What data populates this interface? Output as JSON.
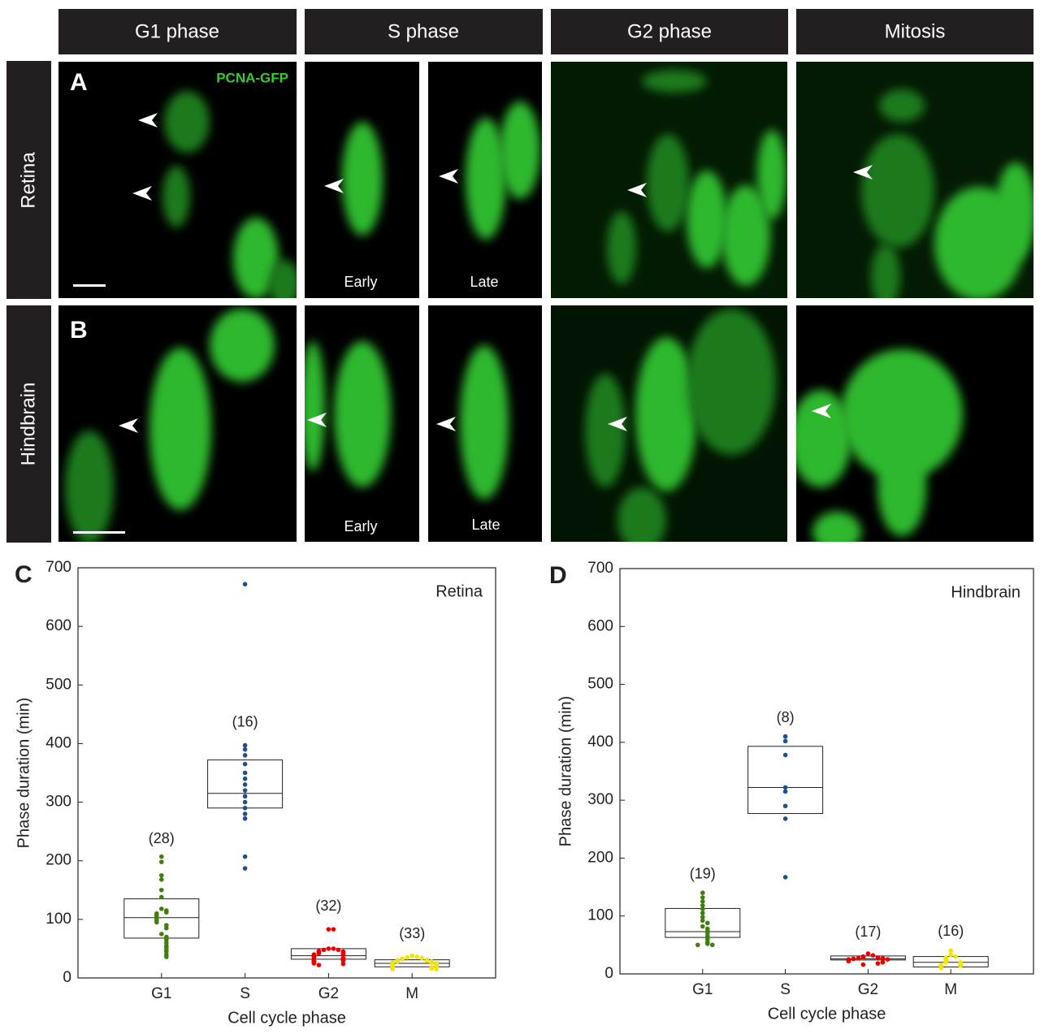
{
  "figure": {
    "headers": [
      "G1 phase",
      "S phase",
      "G2 phase",
      "Mitosis"
    ],
    "rows": [
      "Retina",
      "Hindbrain"
    ],
    "panels": [
      "A",
      "B"
    ],
    "marker": "PCNA-GFP",
    "s_phase_labels": [
      "Early",
      "Late"
    ]
  },
  "chart_data": [
    {
      "type": "box",
      "panel": "C",
      "title": "Retina",
      "xlabel": "Cell cycle phase",
      "ylabel": "Phase duration (min)",
      "ylim": [
        0,
        700
      ],
      "yticks": [
        0,
        100,
        200,
        300,
        400,
        500,
        600,
        700
      ],
      "categories": [
        "G1",
        "S",
        "G2",
        "M"
      ],
      "colors": [
        "#3f7f10",
        "#1d4f8c",
        "#e60000",
        "#f2e600"
      ],
      "n_labels": [
        "(28)",
        "(16)",
        "(32)",
        "(33)"
      ],
      "q1": [
        68,
        290,
        32,
        19
      ],
      "median": [
        103,
        315,
        38,
        25
      ],
      "q3": [
        135,
        372,
        50,
        31
      ],
      "points": [
        [
          207,
          198,
          175,
          168,
          150,
          138,
          118,
          115,
          112,
          110,
          108,
          105,
          103,
          100,
          98,
          95,
          90,
          85,
          75,
          70,
          65,
          60,
          55,
          52,
          48,
          45,
          40,
          36
        ],
        [
          672,
          397,
          390,
          380,
          365,
          350,
          340,
          330,
          320,
          310,
          300,
          290,
          280,
          272,
          207,
          187
        ],
        [
          83,
          83,
          50,
          50,
          48,
          48,
          46,
          45,
          44,
          43,
          42,
          41,
          40,
          40,
          39,
          38,
          37,
          36,
          35,
          34,
          33,
          32,
          31,
          30,
          30,
          29,
          28,
          27,
          26,
          25,
          24,
          22
        ],
        [
          38,
          36,
          35,
          34,
          33,
          32,
          31,
          30,
          30,
          29,
          28,
          28,
          27,
          26,
          26,
          25,
          25,
          24,
          24,
          23,
          22,
          22,
          21,
          20,
          20,
          19,
          18,
          18,
          17,
          16,
          16,
          15,
          15
        ]
      ]
    },
    {
      "type": "box",
      "panel": "D",
      "title": "Hindbrain",
      "xlabel": "Cell cycle phase",
      "ylabel": "Phase duration (min)",
      "ylim": [
        0,
        700
      ],
      "yticks": [
        0,
        100,
        200,
        300,
        400,
        500,
        600,
        700
      ],
      "categories": [
        "G1",
        "S",
        "G2",
        "M"
      ],
      "colors": [
        "#3f7f10",
        "#1d4f8c",
        "#e60000",
        "#f2e600"
      ],
      "n_labels": [
        "(19)",
        "(8)",
        "(17)",
        "(16)"
      ],
      "q1": [
        63,
        277,
        24,
        12
      ],
      "median": [
        73,
        322,
        26,
        20
      ],
      "q3": [
        113,
        393,
        31,
        30
      ],
      "points": [
        [
          140,
          132,
          125,
          118,
          112,
          105,
          98,
          92,
          88,
          82,
          78,
          74,
          70,
          65,
          60,
          55,
          52,
          50,
          50
        ],
        [
          410,
          402,
          378,
          322,
          315,
          290,
          268,
          167
        ],
        [
          35,
          32,
          30,
          29,
          28,
          27,
          27,
          26,
          26,
          25,
          25,
          24,
          23,
          22,
          20,
          18,
          16
        ],
        [
          40,
          33,
          30,
          28,
          26,
          24,
          22,
          20,
          20,
          18,
          16,
          15,
          14,
          13,
          12,
          10
        ]
      ]
    }
  ]
}
